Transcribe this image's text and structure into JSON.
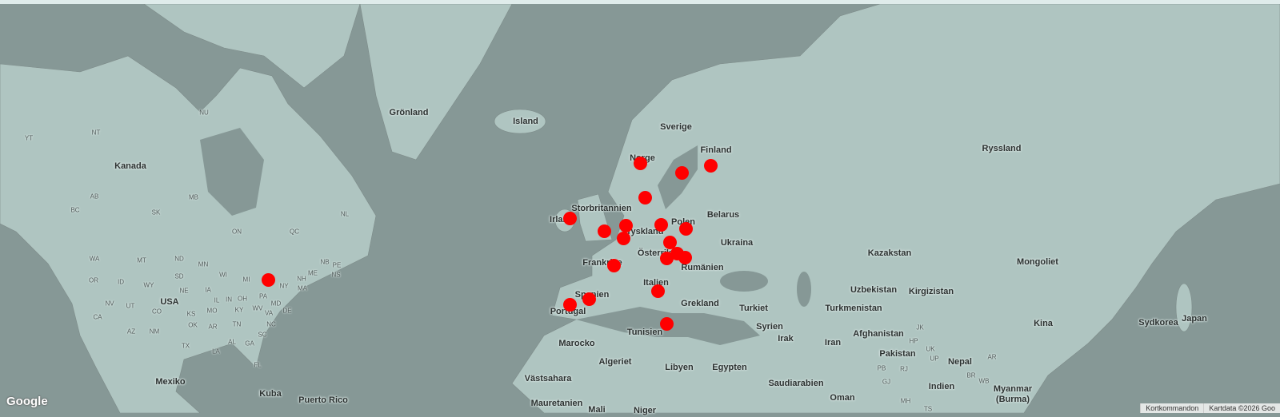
{
  "map": {
    "colors": {
      "water": "#869896",
      "land": "#afc5c1",
      "border": "#55605e",
      "marker": "#ff0000"
    },
    "country_labels": [
      "Grönland",
      "Island",
      "Sverige",
      "Finland",
      "Norge",
      "Ryssland",
      "Kanada",
      "Storbritannien",
      "Irland",
      "Belarus",
      "Polen",
      "Tyskland",
      "Ukraina",
      "Österrike",
      "Kazakstan",
      "Mongoliet",
      "Frankrike",
      "Rumänien",
      "Italien",
      "Uzbekistan",
      "Kirgizistan",
      "Spanien",
      "Turkmenistan",
      "Grekland",
      "Turkiet",
      "USA",
      "Portugal",
      "Japan",
      "Sydkorea",
      "Kina",
      "Syrien",
      "Irak",
      "Afghanistan",
      "Tunisien",
      "Iran",
      "Pakistan",
      "Nepal",
      "Marocko",
      "Algeriet",
      "Libyen",
      "Egypten",
      "Indien",
      "Mexiko",
      "Saudiarabien",
      "Västsahara",
      "Myanmar",
      "(Burma)",
      "Kuba",
      "Puerto Rico",
      "Oman",
      "Mauretanien",
      "Mali",
      "Niger"
    ],
    "region_labels": [
      "NT",
      "YT",
      "NU",
      "AB",
      "BC",
      "SK",
      "MB",
      "ON",
      "QC",
      "NL",
      "WA",
      "MT",
      "ND",
      "MN",
      "OR",
      "ID",
      "SD",
      "WI",
      "MI",
      "NY",
      "ME",
      "NH",
      "MA",
      "NB",
      "PE",
      "NS",
      "WY",
      "NE",
      "IA",
      "IL",
      "IN",
      "OH",
      "PA",
      "NV",
      "UT",
      "CO",
      "KS",
      "MO",
      "KY",
      "WV",
      "VA",
      "CA",
      "AZ",
      "NM",
      "OK",
      "AR",
      "TN",
      "NC",
      "TX",
      "AL",
      "GA",
      "SC",
      "LA",
      "FL",
      "MD",
      "DE",
      "JK",
      "HP",
      "PB",
      "UK",
      "UP",
      "RJ",
      "GJ",
      "MH",
      "BR",
      "WB",
      "AR",
      "TS"
    ]
  },
  "footer": {
    "logo": "Google",
    "shortcuts": "Kortkommandon",
    "attribution": "Kartdata ©2026 Goo"
  }
}
